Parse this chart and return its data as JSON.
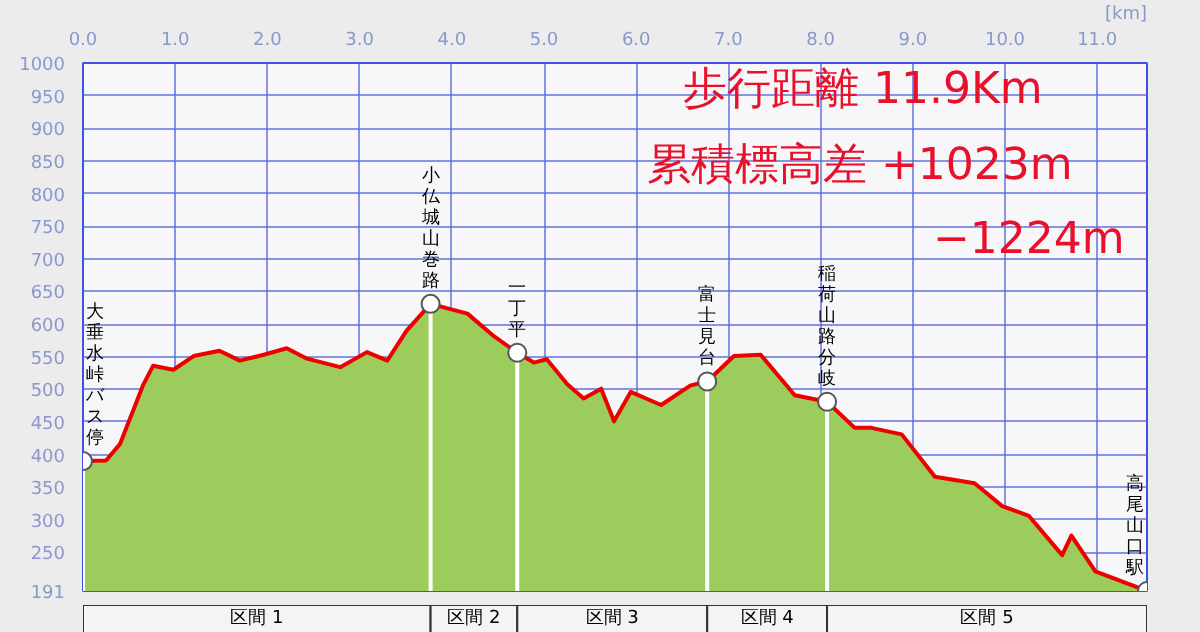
{
  "chart_data": {
    "type": "area",
    "x": [
      0,
      0.25,
      0.4,
      0.54,
      0.65,
      0.76,
      0.98,
      1.2,
      1.48,
      1.7,
      1.96,
      2.21,
      2.43,
      2.79,
      3.08,
      3.3,
      3.51,
      3.77,
      4.17,
      4.46,
      4.71,
      4.89,
      5.03,
      5.25,
      5.43,
      5.62,
      5.76,
      5.94,
      6.27,
      6.59,
      6.77,
      7.06,
      7.35,
      7.72,
      8.07,
      8.37,
      8.55,
      8.88,
      9.24,
      9.67,
      9.97,
      10.26,
      10.62,
      10.72,
      10.98,
      11.54
    ],
    "series": [
      {
        "color": "#9ccc5c",
        "values": [
          390,
          391,
          416,
          466,
          506,
          536,
          530,
          551,
          559,
          544,
          553,
          563,
          547,
          534,
          557,
          544,
          590,
          631,
          616,
          581,
          556,
          541,
          546,
          508,
          486,
          501,
          451,
          496,
          476,
          506,
          512,
          551,
          553,
          491,
          481,
          441,
          441,
          431,
          366,
          356,
          321,
          306,
          246,
          276,
          221,
          191
        ]
      }
    ],
    "xlabel": "[km]",
    "xlim": [
      0,
      11.54
    ],
    "xticks": [
      {
        "value": 0,
        "label": "0.0"
      },
      {
        "value": 1,
        "label": "1.0"
      },
      {
        "value": 2,
        "label": "2.0"
      },
      {
        "value": 3,
        "label": "3.0"
      },
      {
        "value": 4,
        "label": "4.0"
      },
      {
        "value": 5,
        "label": "5.0"
      },
      {
        "value": 6,
        "label": "6.0"
      },
      {
        "value": 7,
        "label": "7.0"
      },
      {
        "value": 8,
        "label": "8.0"
      },
      {
        "value": 9,
        "label": "9.0"
      },
      {
        "value": 10,
        "label": "10.0"
      },
      {
        "value": 11,
        "label": "11.0"
      }
    ],
    "ylim": [
      191,
      1000
    ],
    "yticks": [
      191,
      250,
      300,
      350,
      400,
      450,
      500,
      550,
      600,
      650,
      700,
      750,
      800,
      850,
      900,
      950,
      1000
    ],
    "grid": true,
    "annotations": [
      {
        "text": "大垂水峠バス停",
        "x": 0,
        "y": 390
      },
      {
        "text": "小仏城山巻路",
        "x": 3.77,
        "y": 631
      },
      {
        "text": "一丁平",
        "x": 4.71,
        "y": 556
      },
      {
        "text": "富士見台",
        "x": 6.77,
        "y": 512
      },
      {
        "text": "稲荷山路分岐",
        "x": 8.07,
        "y": 481
      },
      {
        "text": "高尾山口駅",
        "x": 11.54,
        "y": 191
      },
      "歩行距離  11.9Km",
      "累積標高差  +1023m",
      "−1224m",
      "区間 1",
      "区間 2",
      "区間 3",
      "区間 4",
      "区間 5"
    ]
  }
}
